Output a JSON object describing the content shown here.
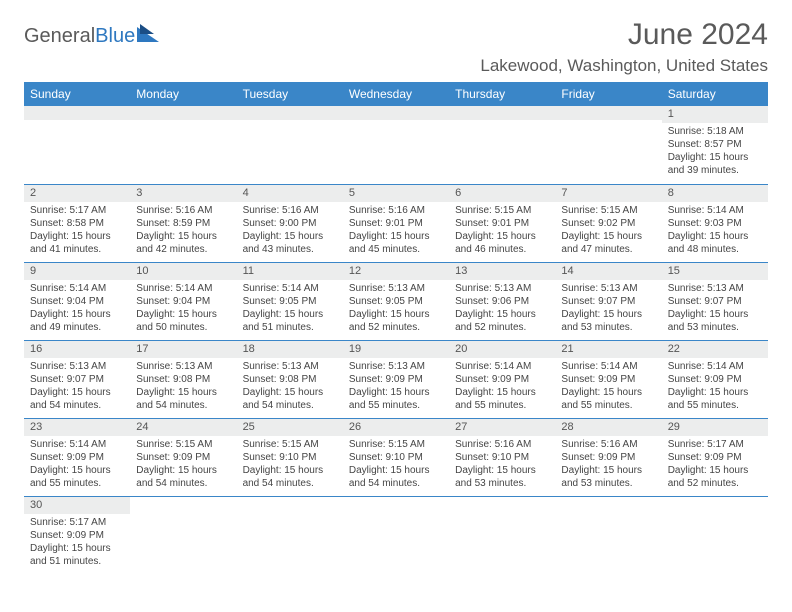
{
  "brand": {
    "general": "General",
    "blue": "Blue"
  },
  "header": {
    "title": "June 2024",
    "location": "Lakewood, Washington, United States"
  },
  "colors": {
    "header_bg": "#3a86c8",
    "header_fg": "#ffffff",
    "daynum_bg": "#eceded",
    "text": "#454545",
    "rule": "#3a86c8",
    "brand_blue": "#2e78c0"
  },
  "calendar": {
    "day_headers": [
      "Sunday",
      "Monday",
      "Tuesday",
      "Wednesday",
      "Thursday",
      "Friday",
      "Saturday"
    ],
    "lead_blanks": 6,
    "days": [
      {
        "n": 1,
        "sunrise": "5:18 AM",
        "sunset": "8:57 PM",
        "daylight": "15 hours and 39 minutes."
      },
      {
        "n": 2,
        "sunrise": "5:17 AM",
        "sunset": "8:58 PM",
        "daylight": "15 hours and 41 minutes."
      },
      {
        "n": 3,
        "sunrise": "5:16 AM",
        "sunset": "8:59 PM",
        "daylight": "15 hours and 42 minutes."
      },
      {
        "n": 4,
        "sunrise": "5:16 AM",
        "sunset": "9:00 PM",
        "daylight": "15 hours and 43 minutes."
      },
      {
        "n": 5,
        "sunrise": "5:16 AM",
        "sunset": "9:01 PM",
        "daylight": "15 hours and 45 minutes."
      },
      {
        "n": 6,
        "sunrise": "5:15 AM",
        "sunset": "9:01 PM",
        "daylight": "15 hours and 46 minutes."
      },
      {
        "n": 7,
        "sunrise": "5:15 AM",
        "sunset": "9:02 PM",
        "daylight": "15 hours and 47 minutes."
      },
      {
        "n": 8,
        "sunrise": "5:14 AM",
        "sunset": "9:03 PM",
        "daylight": "15 hours and 48 minutes."
      },
      {
        "n": 9,
        "sunrise": "5:14 AM",
        "sunset": "9:04 PM",
        "daylight": "15 hours and 49 minutes."
      },
      {
        "n": 10,
        "sunrise": "5:14 AM",
        "sunset": "9:04 PM",
        "daylight": "15 hours and 50 minutes."
      },
      {
        "n": 11,
        "sunrise": "5:14 AM",
        "sunset": "9:05 PM",
        "daylight": "15 hours and 51 minutes."
      },
      {
        "n": 12,
        "sunrise": "5:13 AM",
        "sunset": "9:05 PM",
        "daylight": "15 hours and 52 minutes."
      },
      {
        "n": 13,
        "sunrise": "5:13 AM",
        "sunset": "9:06 PM",
        "daylight": "15 hours and 52 minutes."
      },
      {
        "n": 14,
        "sunrise": "5:13 AM",
        "sunset": "9:07 PM",
        "daylight": "15 hours and 53 minutes."
      },
      {
        "n": 15,
        "sunrise": "5:13 AM",
        "sunset": "9:07 PM",
        "daylight": "15 hours and 53 minutes."
      },
      {
        "n": 16,
        "sunrise": "5:13 AM",
        "sunset": "9:07 PM",
        "daylight": "15 hours and 54 minutes."
      },
      {
        "n": 17,
        "sunrise": "5:13 AM",
        "sunset": "9:08 PM",
        "daylight": "15 hours and 54 minutes."
      },
      {
        "n": 18,
        "sunrise": "5:13 AM",
        "sunset": "9:08 PM",
        "daylight": "15 hours and 54 minutes."
      },
      {
        "n": 19,
        "sunrise": "5:13 AM",
        "sunset": "9:09 PM",
        "daylight": "15 hours and 55 minutes."
      },
      {
        "n": 20,
        "sunrise": "5:14 AM",
        "sunset": "9:09 PM",
        "daylight": "15 hours and 55 minutes."
      },
      {
        "n": 21,
        "sunrise": "5:14 AM",
        "sunset": "9:09 PM",
        "daylight": "15 hours and 55 minutes."
      },
      {
        "n": 22,
        "sunrise": "5:14 AM",
        "sunset": "9:09 PM",
        "daylight": "15 hours and 55 minutes."
      },
      {
        "n": 23,
        "sunrise": "5:14 AM",
        "sunset": "9:09 PM",
        "daylight": "15 hours and 55 minutes."
      },
      {
        "n": 24,
        "sunrise": "5:15 AM",
        "sunset": "9:09 PM",
        "daylight": "15 hours and 54 minutes."
      },
      {
        "n": 25,
        "sunrise": "5:15 AM",
        "sunset": "9:10 PM",
        "daylight": "15 hours and 54 minutes."
      },
      {
        "n": 26,
        "sunrise": "5:15 AM",
        "sunset": "9:10 PM",
        "daylight": "15 hours and 54 minutes."
      },
      {
        "n": 27,
        "sunrise": "5:16 AM",
        "sunset": "9:10 PM",
        "daylight": "15 hours and 53 minutes."
      },
      {
        "n": 28,
        "sunrise": "5:16 AM",
        "sunset": "9:09 PM",
        "daylight": "15 hours and 53 minutes."
      },
      {
        "n": 29,
        "sunrise": "5:17 AM",
        "sunset": "9:09 PM",
        "daylight": "15 hours and 52 minutes."
      },
      {
        "n": 30,
        "sunrise": "5:17 AM",
        "sunset": "9:09 PM",
        "daylight": "15 hours and 51 minutes."
      }
    ],
    "labels": {
      "sunrise": "Sunrise:",
      "sunset": "Sunset:",
      "daylight": "Daylight:"
    }
  }
}
